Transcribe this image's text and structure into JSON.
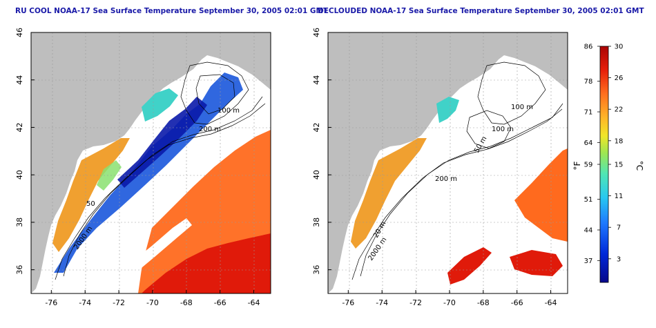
{
  "titles": {
    "left": "RU COOL NOAA-17 Sea Surface Temperature September 30, 2005 02:01 GMT",
    "right": "DECLOUDED NOAA-17 Sea Surface Temperature September 30, 2005 02:01 GMT"
  },
  "map": {
    "lon_range": [
      -77.2,
      -63.0
    ],
    "lat_range": [
      35.0,
      46.0
    ],
    "lon_ticks": [
      -76,
      -74,
      -72,
      -70,
      -68,
      -66,
      -64
    ],
    "lon_tick_labels": [
      "-76",
      "-74",
      "-72",
      "-70",
      "-68",
      "-66",
      "-64"
    ],
    "lat_ticks": [
      36,
      38,
      40,
      42,
      44,
      46
    ],
    "lat_tick_labels": [
      "36",
      "38",
      "40",
      "42",
      "44",
      "46"
    ],
    "grid": "dotted"
  },
  "contour_labels": {
    "left": [
      "100 m",
      "200 m",
      "50",
      "2000 m"
    ],
    "right": [
      "100 m",
      "100 m",
      "50 m",
      "200 m",
      "20 m",
      "2000 m"
    ]
  },
  "colorbar": {
    "celsius_range": [
      0,
      30
    ],
    "celsius_labels": [
      "30",
      "26",
      "22",
      "18",
      "15",
      "11",
      "7",
      "3"
    ],
    "fahrenheit_labels": [
      "86",
      "78",
      "71",
      "64",
      "59",
      "51",
      "44",
      "37"
    ],
    "unit_left": "°F",
    "unit_right": "°C",
    "colors": [
      "#08088a",
      "#0028d8",
      "#1e78ff",
      "#28c8f0",
      "#50e6b4",
      "#a0e650",
      "#f0e628",
      "#ffb428",
      "#ff6e1e",
      "#e61e0a",
      "#aa0505"
    ]
  },
  "colors": {
    "land": "#bebebe",
    "title": "#1a1aa8"
  }
}
